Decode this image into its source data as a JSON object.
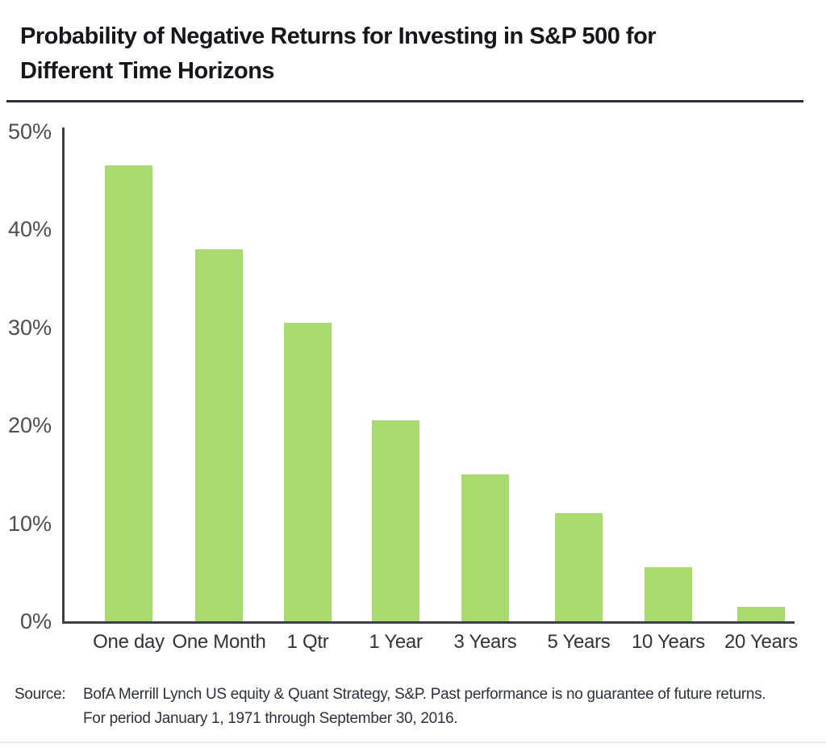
{
  "header": {
    "title_line1": "Probability of Negative Returns for Investing in S&P 500 for",
    "title_line2": "Different Time Horizons"
  },
  "chart_data": {
    "type": "bar",
    "title": "Probability of Negative Returns for Investing in S&P 500 for Different Time Horizons",
    "categories": [
      "One day",
      "One Month",
      "1 Qtr",
      "1 Year",
      "3 Years",
      "5 Years",
      "10 Years",
      "20 Years"
    ],
    "values": [
      46.5,
      38,
      30.5,
      20.5,
      15,
      11,
      5.5,
      1.5
    ],
    "value_unit": "percent",
    "xlabel": "",
    "ylabel": "",
    "ylim": [
      0,
      50
    ],
    "ytick_labels": [
      "50%",
      "40%",
      "30%",
      "20%",
      "10%",
      "0%"
    ],
    "grid": false,
    "legend": false,
    "bar_color": "#a9da6f",
    "axis_color": "#3c3f44"
  },
  "source": {
    "label": "Source:",
    "line1": "BofA Merrill Lynch US equity & Quant Strategy, S&P. Past performance is no guarantee of future returns.",
    "line2": "For period January 1, 1971 through September 30, 2016."
  }
}
